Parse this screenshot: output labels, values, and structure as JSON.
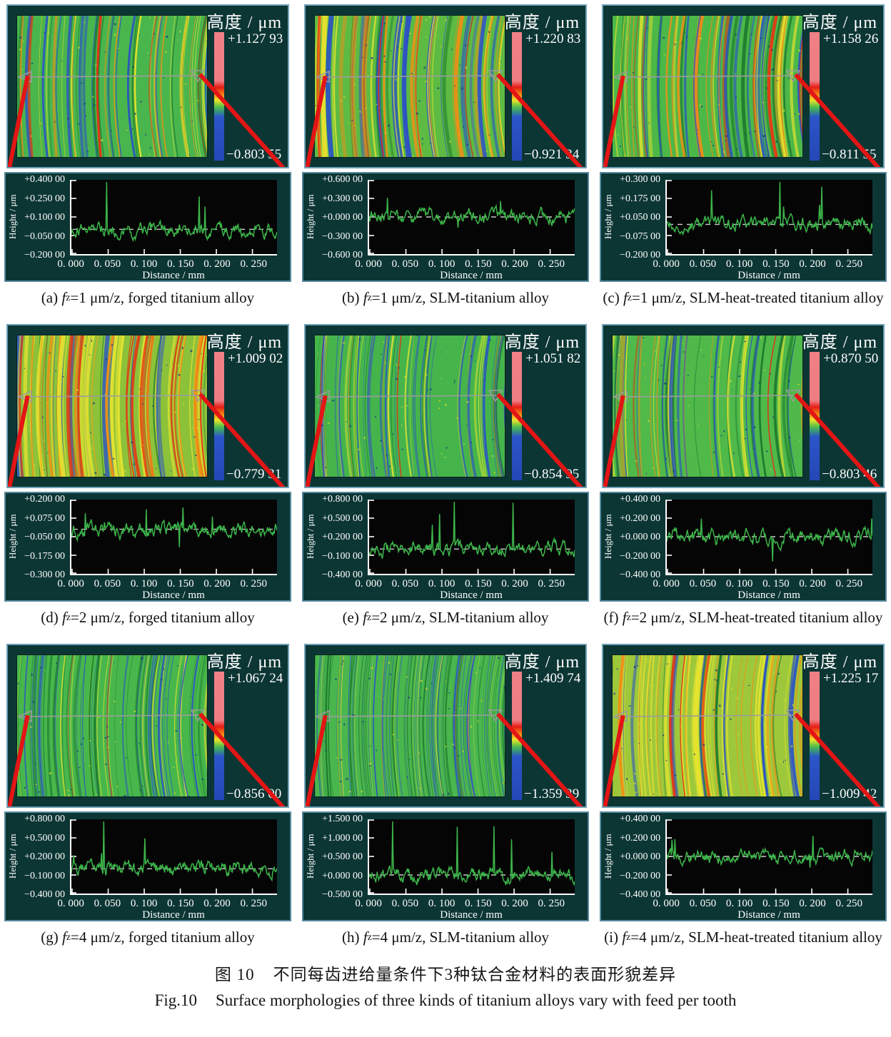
{
  "shared": {
    "colorbar_title": "高度 / μm",
    "ylabel": "Height / μm",
    "xlabel": "Distance / mm",
    "x_ticks": [
      "0. 000",
      "0. 050",
      "0. 100",
      "0. 150",
      "0. 200",
      "0. 250"
    ],
    "fz_symbol": {
      "f": "f",
      "sub": "z"
    }
  },
  "panels": [
    {
      "label": "(a)",
      "condition": "=1 μm/z,",
      "material": "forged titanium alloy",
      "colorbar": {
        "max": "+1.127 93",
        "min": "−0.803 55"
      },
      "y_ticks": [
        "+0.400 00",
        "+0.250 00",
        "+0.100 00",
        "−0.050 00",
        "−0.200 00"
      ],
      "surface_description": "green surface with curved yellow, red and blue milling bands"
    },
    {
      "label": "(b)",
      "condition": "=1 μm/z,",
      "material": "SLM-titanium alloy",
      "colorbar": {
        "max": "+1.220 83",
        "min": "−0.921 34"
      },
      "y_ticks": [
        "+0.600 00",
        "+0.300 00",
        "+0.000 00",
        "−0.300 00",
        "−0.600 00"
      ],
      "surface_description": "green-yellow surface with broad orange and deep blue arc bands"
    },
    {
      "label": "(c)",
      "condition": "=1 μm/z,",
      "material": "SLM-heat-treated titanium alloy",
      "colorbar": {
        "max": "+1.158 26",
        "min": "−0.811 55"
      },
      "y_ticks": [
        "+0.300 00",
        "+0.175 00",
        "+0.050 00",
        "−0.075 00",
        "−0.200 00"
      ],
      "surface_description": "green surface with strong red-orange arc bands and speckles"
    },
    {
      "label": "(d)",
      "condition": "=2 μm/z,",
      "material": "forged titanium alloy",
      "colorbar": {
        "max": "+1.009 02",
        "min": "−0.779 31"
      },
      "y_ticks": [
        "+0.200 00",
        "+0.075 00",
        "−0.050 00",
        "−0.175 00",
        "−0.300 00"
      ],
      "surface_description": "warm orange-red dominated surface with dense arc bands"
    },
    {
      "label": "(e)",
      "condition": "=2 μm/z,",
      "material": "SLM-titanium alloy",
      "colorbar": {
        "max": "+1.051 82",
        "min": "−0.854 95"
      },
      "y_ticks": [
        "+0.800 00",
        "+0.500 00",
        "+0.200 00",
        "−0.100 00",
        "−0.400 00"
      ],
      "surface_description": "green surface with fine blue streaks and sparse yellow"
    },
    {
      "label": "(f)",
      "condition": "=2 μm/z,",
      "material": "SLM-heat-treated titanium alloy",
      "colorbar": {
        "max": "+0.870 50",
        "min": "−0.803 46"
      },
      "y_ticks": [
        "+0.400 00",
        "+0.200 00",
        "+0.000 00",
        "−0.200 00",
        "−0.400 00"
      ],
      "surface_description": "smooth green surface with wide yellow and blue arc bands"
    },
    {
      "label": "(g)",
      "condition": "=4 μm/z,",
      "material": "forged titanium alloy",
      "colorbar": {
        "max": "+1.067 24",
        "min": "−0.856 00"
      },
      "y_ticks": [
        "+0.800 00",
        "+0.500 00",
        "+0.200 00",
        "−0.100 00",
        "−0.400 00"
      ],
      "surface_description": "green surface with thin dark blue stripes and yellow flecks"
    },
    {
      "label": "(h)",
      "condition": "=4 μm/z,",
      "material": "SLM-titanium alloy",
      "colorbar": {
        "max": "+1.409 74",
        "min": "−1.359 39"
      },
      "y_ticks": [
        "+1.500 00",
        "+1.000 00",
        "+0.500 00",
        "+0.000 00",
        "−0.500 00"
      ],
      "surface_description": "fine-textured green surface with many thin dark streaks"
    },
    {
      "label": "(i)",
      "condition": "=4 μm/z,",
      "material": "SLM-heat-treated titanium alloy",
      "colorbar": {
        "max": "+1.225 17",
        "min": "−1.009 42"
      },
      "y_ticks": [
        "+0.400 00",
        "+0.200 00",
        "+0.000 00",
        "−0.200 00",
        "−0.400 00"
      ],
      "surface_description": "yellow-green surface with orange patches and dark blue pits"
    }
  ],
  "figure_captions": {
    "zh_label": "图 10",
    "zh_text": "不同每齿进给量条件下3种钛合金材料的表面形貌差异",
    "en_label": "Fig.10",
    "en_text": "Surface morphologies of three kinds of titanium alloys vary with feed per tooth"
  },
  "colors": {
    "panel_background": "#0c3634",
    "panel_border": "#6fa3b8",
    "trace_green": "#3cb54a",
    "indicator_red": "#e31515",
    "colorbar_top": "#ef8086",
    "colorbar_bottom": "#2547b6"
  }
}
